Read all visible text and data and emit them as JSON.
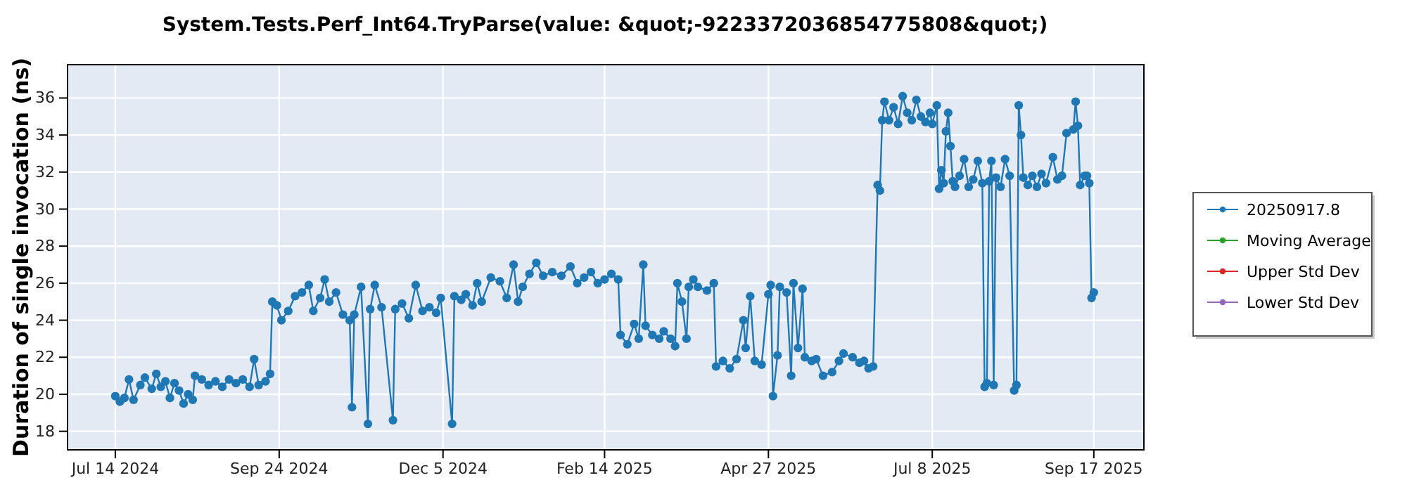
{
  "chart_data": {
    "type": "line",
    "title": "System.Tests.Perf_Int64.TryParse(value: &quot;-9223372036854775808&quot;)",
    "ylabel": "Duration of single invocation (ns)",
    "x": [
      "2024-07-14",
      "2024-07-16",
      "2024-07-18",
      "2024-07-20",
      "2024-07-22",
      "2024-07-25",
      "2024-07-27",
      "2024-07-30",
      "2024-08-01",
      "2024-08-03",
      "2024-08-05",
      "2024-08-07",
      "2024-08-09",
      "2024-08-11",
      "2024-08-13",
      "2024-08-15",
      "2024-08-17",
      "2024-08-18",
      "2024-08-21",
      "2024-08-24",
      "2024-08-27",
      "2024-08-30",
      "2024-09-02",
      "2024-09-05",
      "2024-09-08",
      "2024-09-11",
      "2024-09-13",
      "2024-09-15",
      "2024-09-18",
      "2024-09-20",
      "2024-09-21",
      "2024-09-23",
      "2024-09-25",
      "2024-09-28",
      "2024-10-01",
      "2024-10-04",
      "2024-10-07",
      "2024-10-09",
      "2024-10-12",
      "2024-10-14",
      "2024-10-16",
      "2024-10-19",
      "2024-10-22",
      "2024-10-25",
      "2024-10-26",
      "2024-10-27",
      "2024-10-30",
      "2024-11-02",
      "2024-11-03",
      "2024-11-05",
      "2024-11-08",
      "2024-11-13",
      "2024-11-14",
      "2024-11-17",
      "2024-11-20",
      "2024-11-23",
      "2024-11-26",
      "2024-11-29",
      "2024-12-02",
      "2024-12-04",
      "2024-12-09",
      "2024-12-10",
      "2024-12-13",
      "2024-12-15",
      "2024-12-18",
      "2024-12-20",
      "2024-12-22",
      "2024-12-26",
      "2024-12-30",
      "2025-01-02",
      "2025-01-05",
      "2025-01-07",
      "2025-01-09",
      "2025-01-12",
      "2025-01-15",
      "2025-01-18",
      "2025-01-22",
      "2025-01-26",
      "2025-01-30",
      "2025-02-02",
      "2025-02-05",
      "2025-02-08",
      "2025-02-11",
      "2025-02-14",
      "2025-02-17",
      "2025-02-20",
      "2025-02-21",
      "2025-02-24",
      "2025-02-27",
      "2025-03-01",
      "2025-03-03",
      "2025-03-04",
      "2025-03-07",
      "2025-03-10",
      "2025-03-12",
      "2025-03-15",
      "2025-03-17",
      "2025-03-18",
      "2025-03-20",
      "2025-03-22",
      "2025-03-23",
      "2025-03-25",
      "2025-03-27",
      "2025-03-31",
      "2025-04-03",
      "2025-04-04",
      "2025-04-07",
      "2025-04-10",
      "2025-04-13",
      "2025-04-16",
      "2025-04-17",
      "2025-04-19",
      "2025-04-21",
      "2025-04-24",
      "2025-04-27",
      "2025-04-28",
      "2025-04-29",
      "2025-05-01",
      "2025-05-02",
      "2025-05-05",
      "2025-05-07",
      "2025-05-08",
      "2025-05-10",
      "2025-05-12",
      "2025-05-13",
      "2025-05-16",
      "2025-05-18",
      "2025-05-21",
      "2025-05-25",
      "2025-05-28",
      "2025-05-30",
      "2025-06-03",
      "2025-06-06",
      "2025-06-08",
      "2025-06-10",
      "2025-06-12",
      "2025-06-14",
      "2025-06-15",
      "2025-06-16",
      "2025-06-17",
      "2025-06-19",
      "2025-06-21",
      "2025-06-23",
      "2025-06-25",
      "2025-06-27",
      "2025-06-29",
      "2025-07-01",
      "2025-07-03",
      "2025-07-05",
      "2025-07-07",
      "2025-07-08",
      "2025-07-10",
      "2025-07-11",
      "2025-07-12",
      "2025-07-13",
      "2025-07-14",
      "2025-07-15",
      "2025-07-16",
      "2025-07-17",
      "2025-07-18",
      "2025-07-20",
      "2025-07-22",
      "2025-07-24",
      "2025-07-26",
      "2025-07-28",
      "2025-07-30",
      "2025-07-31",
      "2025-08-01",
      "2025-08-02",
      "2025-08-03",
      "2025-08-04",
      "2025-08-05",
      "2025-08-07",
      "2025-08-09",
      "2025-08-11",
      "2025-08-13",
      "2025-08-14",
      "2025-08-15",
      "2025-08-16",
      "2025-08-17",
      "2025-08-19",
      "2025-08-21",
      "2025-08-23",
      "2025-08-25",
      "2025-08-27",
      "2025-08-30",
      "2025-09-01",
      "2025-09-03",
      "2025-09-05",
      "2025-09-08",
      "2025-09-09",
      "2025-09-10",
      "2025-09-11",
      "2025-09-13",
      "2025-09-14",
      "2025-09-15",
      "2025-09-16",
      "2025-09-17"
    ],
    "series": [
      {
        "name": "20250917.8",
        "color": "#1f77b4",
        "values": [
          19.9,
          19.6,
          19.8,
          20.8,
          19.7,
          20.5,
          20.9,
          20.3,
          21.1,
          20.4,
          20.7,
          19.8,
          20.6,
          20.2,
          19.5,
          20.0,
          19.7,
          21.0,
          20.8,
          20.5,
          20.7,
          20.4,
          20.8,
          20.6,
          20.8,
          20.4,
          21.9,
          20.5,
          20.7,
          21.1,
          25.0,
          24.8,
          24.0,
          24.5,
          25.3,
          25.5,
          25.9,
          24.5,
          25.2,
          26.2,
          25.0,
          25.5,
          24.3,
          24.0,
          19.3,
          24.3,
          25.8,
          18.4,
          24.6,
          25.9,
          24.7,
          18.6,
          24.6,
          24.9,
          24.1,
          25.9,
          24.5,
          24.7,
          24.4,
          25.2,
          18.4,
          25.3,
          25.1,
          25.4,
          24.8,
          26.0,
          25.0,
          26.3,
          26.1,
          25.2,
          27.0,
          25.0,
          25.8,
          26.5,
          27.1,
          26.4,
          26.6,
          26.4,
          26.9,
          26.0,
          26.3,
          26.6,
          26.0,
          26.2,
          26.5,
          26.2,
          23.2,
          22.7,
          23.8,
          23.0,
          27.0,
          23.7,
          23.2,
          23.0,
          23.4,
          23.0,
          22.6,
          26.0,
          25.0,
          23.0,
          25.8,
          26.2,
          25.8,
          25.6,
          26.0,
          21.5,
          21.8,
          21.4,
          21.9,
          24.0,
          22.5,
          25.3,
          21.8,
          21.6,
          25.4,
          25.9,
          19.9,
          22.1,
          25.8,
          25.5,
          21.0,
          26.0,
          22.5,
          25.7,
          22.0,
          21.8,
          21.9,
          21.0,
          21.2,
          21.8,
          22.2,
          22.0,
          21.7,
          21.8,
          21.4,
          21.5,
          31.3,
          31.0,
          34.8,
          35.8,
          34.8,
          35.5,
          34.6,
          36.1,
          35.2,
          34.8,
          35.9,
          35.0,
          34.7,
          35.2,
          34.6,
          35.6,
          31.1,
          32.1,
          31.4,
          34.2,
          35.2,
          33.4,
          31.5,
          31.2,
          31.8,
          32.7,
          31.2,
          31.6,
          32.6,
          31.4,
          20.4,
          20.6,
          31.5,
          32.6,
          20.5,
          31.7,
          31.2,
          32.7,
          31.8,
          20.2,
          20.5,
          35.6,
          34.0,
          31.7,
          31.3,
          31.8,
          31.2,
          31.9,
          31.4,
          32.8,
          31.6,
          31.8,
          34.1,
          34.3,
          35.8,
          34.5,
          31.3,
          31.8,
          31.8,
          31.4,
          25.2,
          25.5
        ]
      },
      {
        "name": "Moving Average",
        "color": "#2ca02c",
        "values": [
          null,
          null,
          null,
          null,
          null,
          null,
          null,
          null,
          null,
          null,
          null,
          null,
          null,
          null,
          null,
          null,
          null,
          null,
          null,
          null,
          null,
          null,
          null,
          null,
          null,
          null,
          null,
          null,
          null,
          null,
          null,
          null,
          null,
          null,
          null,
          null,
          null,
          null,
          null,
          null,
          null,
          null,
          null,
          null,
          null,
          null,
          null,
          null,
          null,
          null,
          null,
          null,
          null,
          null,
          null,
          null,
          null,
          null,
          null,
          null,
          null,
          null,
          null,
          null,
          null,
          null,
          null,
          null,
          null,
          null,
          null,
          null,
          null,
          null,
          null,
          null,
          null,
          null,
          null,
          null,
          null,
          null,
          null,
          null,
          null,
          null,
          null,
          null,
          null,
          null,
          null,
          null,
          null,
          null,
          null,
          null,
          null,
          null,
          null,
          null,
          null,
          null,
          null,
          null,
          null,
          null,
          null,
          null,
          null,
          null,
          null,
          null,
          null,
          null,
          null,
          null,
          null,
          null,
          null,
          null,
          null,
          null,
          null,
          null,
          null,
          null,
          null,
          null,
          null,
          null,
          null,
          null,
          null,
          null,
          null,
          null,
          null,
          null,
          null,
          null,
          null,
          null,
          null,
          null,
          null,
          null,
          null,
          null,
          null,
          null,
          null,
          null,
          null,
          null,
          null,
          null,
          null,
          null,
          null,
          null,
          null,
          null,
          null,
          null,
          null,
          null,
          null,
          null,
          null,
          null,
          null,
          null,
          null,
          null,
          null,
          null,
          null,
          null,
          null,
          null,
          null,
          null,
          null,
          null,
          null,
          null,
          null,
          null,
          null,
          null,
          null,
          null,
          null,
          null,
          null,
          null,
          null,
          null
        ]
      },
      {
        "name": "Upper Std Dev",
        "color": "#d62728",
        "values": [
          null,
          null,
          null,
          null,
          null,
          null,
          null,
          null,
          null,
          null,
          null,
          null,
          null,
          null,
          null,
          null,
          null,
          null,
          null,
          null,
          null,
          null,
          null,
          null,
          null,
          null,
          null,
          null,
          null,
          null,
          null,
          null,
          null,
          null,
          null,
          null,
          null,
          null,
          null,
          null,
          null,
          null,
          null,
          null,
          null,
          null,
          null,
          null,
          null,
          null,
          null,
          null,
          null,
          null,
          null,
          null,
          null,
          null,
          null,
          null,
          null,
          null,
          null,
          null,
          null,
          null,
          null,
          null,
          null,
          null,
          null,
          null,
          null,
          null,
          null,
          null,
          null,
          null,
          null,
          null,
          null,
          null,
          null,
          null,
          null,
          null,
          null,
          null,
          null,
          null,
          null,
          null,
          null,
          null,
          null,
          null,
          null,
          null,
          null,
          null,
          null,
          null,
          null,
          null,
          null,
          null,
          null,
          null,
          null,
          null,
          null,
          null,
          null,
          null,
          null,
          null,
          null,
          null,
          null,
          null,
          null,
          null,
          null,
          null,
          null,
          null,
          null,
          null,
          null,
          null,
          null,
          null,
          null,
          null,
          null,
          null,
          null,
          null,
          null,
          null,
          null,
          null,
          null,
          null,
          null,
          null,
          null,
          null,
          null,
          null,
          null,
          null,
          null,
          null,
          null,
          null,
          null,
          null,
          null,
          null,
          null,
          null,
          null,
          null,
          null,
          null,
          null,
          null,
          null,
          null,
          null,
          null,
          null,
          null,
          null,
          null,
          null,
          null,
          null,
          null,
          null,
          null,
          null,
          null,
          null,
          null,
          null,
          null,
          null,
          null,
          null,
          null,
          null,
          null,
          null,
          null,
          null,
          null
        ]
      },
      {
        "name": "Lower Std Dev",
        "color": "#9467bd",
        "values": [
          null,
          null,
          null,
          null,
          null,
          null,
          null,
          null,
          null,
          null,
          null,
          null,
          null,
          null,
          null,
          null,
          null,
          null,
          null,
          null,
          null,
          null,
          null,
          null,
          null,
          null,
          null,
          null,
          null,
          null,
          null,
          null,
          null,
          null,
          null,
          null,
          null,
          null,
          null,
          null,
          null,
          null,
          null,
          null,
          null,
          null,
          null,
          null,
          null,
          null,
          null,
          null,
          null,
          null,
          null,
          null,
          null,
          null,
          null,
          null,
          null,
          null,
          null,
          null,
          null,
          null,
          null,
          null,
          null,
          null,
          null,
          null,
          null,
          null,
          null,
          null,
          null,
          null,
          null,
          null,
          null,
          null,
          null,
          null,
          null,
          null,
          null,
          null,
          null,
          null,
          null,
          null,
          null,
          null,
          null,
          null,
          null,
          null,
          null,
          null,
          null,
          null,
          null,
          null,
          null,
          null,
          null,
          null,
          null,
          null,
          null,
          null,
          null,
          null,
          null,
          null,
          null,
          null,
          null,
          null,
          null,
          null,
          null,
          null,
          null,
          null,
          null,
          null,
          null,
          null,
          null,
          null,
          null,
          null,
          null,
          null,
          null,
          null,
          null,
          null,
          null,
          null,
          null,
          null,
          null,
          null,
          null,
          null,
          null,
          null,
          null,
          null,
          null,
          null,
          null,
          null,
          null,
          null,
          null,
          null,
          null,
          null,
          null,
          null,
          null,
          null,
          null,
          null,
          null,
          null,
          null,
          null,
          null,
          null,
          null,
          null,
          null,
          null,
          null,
          null,
          null,
          null,
          null,
          null,
          null,
          null,
          null,
          null,
          null,
          null,
          null,
          null,
          null,
          null,
          null,
          null,
          null,
          null
        ]
      }
    ],
    "xlim": [
      "2024-06-23",
      "2025-10-09"
    ],
    "xticks": [
      {
        "value": "2024-07-14",
        "label": "Jul 14 2024"
      },
      {
        "value": "2024-09-24",
        "label": "Sep 24 2024"
      },
      {
        "value": "2024-12-05",
        "label": "Dec 5 2024"
      },
      {
        "value": "2025-02-14",
        "label": "Feb 14 2025"
      },
      {
        "value": "2025-04-27",
        "label": "Apr 27 2025"
      },
      {
        "value": "2025-07-08",
        "label": "Jul 8 2025"
      },
      {
        "value": "2025-09-17",
        "label": "Sep 17 2025"
      }
    ],
    "ylim": [
      17,
      37.8
    ],
    "yticks": [
      18,
      20,
      22,
      24,
      26,
      28,
      30,
      32,
      34,
      36
    ],
    "grid": true,
    "legend": "right",
    "marker": "circle"
  }
}
